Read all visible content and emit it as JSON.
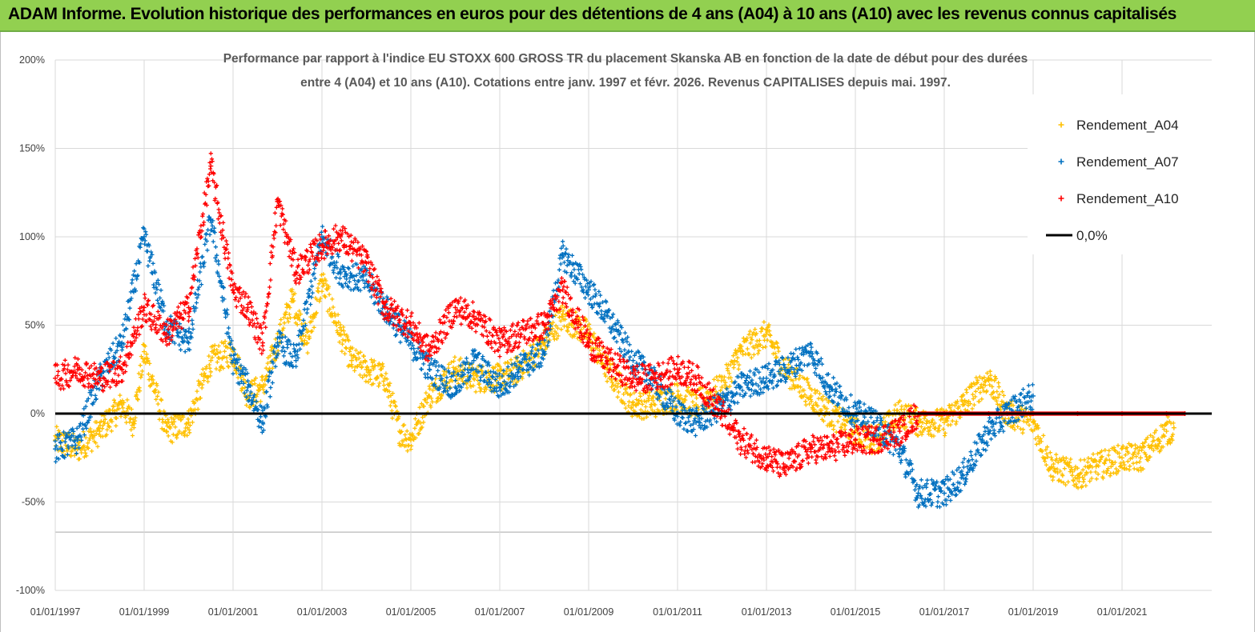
{
  "banner": {
    "title": "ADAM Informe. Evolution historique des performances en euros pour des détentions de 4 ans (A04) à 10 ans (A10) avec les revenus connus capitalisés"
  },
  "colors": {
    "banner_bg": "#92d050",
    "series_A04": "#ffc000",
    "series_A07": "#0070c0",
    "series_A10": "#ff0000",
    "zero_line": "#000000"
  },
  "chart_data": {
    "type": "scatter",
    "title_lines": [
      "Performance par rapport à l'indice EU STOXX 600 GROSS TR  du placement Skanska AB en fonction de la date de début pour des durées",
      "entre 4 (A04) et 10 ans (A10). Cotations entre janv. 1997 et févr. 2026. Revenus CAPITALISES depuis mai. 1997."
    ],
    "xlabel": "",
    "ylabel": "",
    "x_range": [
      "1997-01-01",
      "2022-01-01"
    ],
    "ylim": [
      -100,
      200
    ],
    "y_ticks": [
      "200%",
      "150%",
      "100%",
      "50%",
      "0%",
      "-50%",
      "-100%"
    ],
    "y_tick_values": [
      200,
      150,
      100,
      50,
      0,
      -50,
      -100
    ],
    "x_ticks": [
      "01/01/1997",
      "01/01/1999",
      "01/01/2001",
      "01/01/2003",
      "01/01/2005",
      "01/01/2007",
      "01/01/2009",
      "01/01/2011",
      "01/01/2013",
      "01/01/2015",
      "01/01/2017",
      "01/01/2019",
      "01/01/2021"
    ],
    "x_tick_years": [
      1997,
      1999,
      2001,
      2003,
      2005,
      2007,
      2009,
      2011,
      2013,
      2015,
      2017,
      2019,
      2021
    ],
    "grid": "horizontal and vertical",
    "legend_position": "top-right",
    "series": [
      {
        "name": "Rendement_A04",
        "color": "#ffc000",
        "marker": "+",
        "points": [
          [
            "1997-01",
            -15
          ],
          [
            "1997-07",
            -20
          ],
          [
            "1998-01",
            -10
          ],
          [
            "1998-07",
            5
          ],
          [
            "1998-10",
            -5
          ],
          [
            "1999-01",
            35
          ],
          [
            "1999-07",
            -10
          ],
          [
            "2000-01",
            -5
          ],
          [
            "2000-07",
            30
          ],
          [
            "2001-01",
            35
          ],
          [
            "2001-05",
            10
          ],
          [
            "2001-09",
            15
          ],
          [
            "2002-01",
            40
          ],
          [
            "2002-05",
            65
          ],
          [
            "2002-09",
            40
          ],
          [
            "2003-01",
            75
          ],
          [
            "2003-06",
            45
          ],
          [
            "2003-09",
            30
          ],
          [
            "2004-01",
            25
          ],
          [
            "2004-06",
            20
          ],
          [
            "2004-10",
            -10
          ],
          [
            "2005-01",
            -15
          ],
          [
            "2005-06",
            10
          ],
          [
            "2006-01",
            25
          ],
          [
            "2006-06",
            20
          ],
          [
            "2007-01",
            20
          ],
          [
            "2007-06",
            25
          ],
          [
            "2008-01",
            40
          ],
          [
            "2008-06",
            55
          ],
          [
            "2009-01",
            45
          ],
          [
            "2009-06",
            25
          ],
          [
            "2010-01",
            5
          ],
          [
            "2010-06",
            5
          ],
          [
            "2011-01",
            10
          ],
          [
            "2011-06",
            5
          ],
          [
            "2012-01",
            15
          ],
          [
            "2012-06",
            35
          ],
          [
            "2013-01",
            45
          ],
          [
            "2013-06",
            25
          ],
          [
            "2014-01",
            10
          ],
          [
            "2014-06",
            0
          ],
          [
            "2015-01",
            -10
          ],
          [
            "2015-06",
            -15
          ],
          [
            "2016-01",
            0
          ],
          [
            "2016-06",
            -5
          ],
          [
            "2017-01",
            -5
          ],
          [
            "2017-06",
            5
          ],
          [
            "2018-01",
            20
          ],
          [
            "2018-06",
            0
          ],
          [
            "2019-01",
            -5
          ],
          [
            "2019-06",
            -30
          ],
          [
            "2020-01",
            -35
          ],
          [
            "2020-06",
            -30
          ],
          [
            "2021-01",
            -25
          ],
          [
            "2021-06",
            -25
          ],
          [
            "2022-01",
            -10
          ],
          [
            "2022-03",
            -8
          ]
        ]
      },
      {
        "name": "Rendement_A07",
        "color": "#0070c0",
        "marker": "+",
        "points": [
          [
            "1997-01",
            -20
          ],
          [
            "1997-07",
            -15
          ],
          [
            "1998-01",
            20
          ],
          [
            "1998-07",
            40
          ],
          [
            "1999-01",
            100
          ],
          [
            "1999-07",
            50
          ],
          [
            "2000-01",
            40
          ],
          [
            "2000-07",
            110
          ],
          [
            "2001-01",
            30
          ],
          [
            "2001-05",
            15
          ],
          [
            "2001-09",
            -5
          ],
          [
            "2002-01",
            40
          ],
          [
            "2002-06",
            30
          ],
          [
            "2003-01",
            100
          ],
          [
            "2003-06",
            80
          ],
          [
            "2004-01",
            75
          ],
          [
            "2004-06",
            60
          ],
          [
            "2005-01",
            40
          ],
          [
            "2005-06",
            25
          ],
          [
            "2006-01",
            15
          ],
          [
            "2006-06",
            30
          ],
          [
            "2007-01",
            15
          ],
          [
            "2007-06",
            25
          ],
          [
            "2008-01",
            35
          ],
          [
            "2008-06",
            90
          ],
          [
            "2009-01",
            70
          ],
          [
            "2009-06",
            55
          ],
          [
            "2010-01",
            30
          ],
          [
            "2010-06",
            20
          ],
          [
            "2011-01",
            0
          ],
          [
            "2011-06",
            -5
          ],
          [
            "2012-01",
            5
          ],
          [
            "2012-06",
            15
          ],
          [
            "2013-01",
            20
          ],
          [
            "2013-06",
            25
          ],
          [
            "2014-01",
            35
          ],
          [
            "2014-06",
            15
          ],
          [
            "2015-01",
            0
          ],
          [
            "2015-06",
            -5
          ],
          [
            "2016-01",
            -20
          ],
          [
            "2016-06",
            -45
          ],
          [
            "2017-01",
            -45
          ],
          [
            "2017-06",
            -35
          ],
          [
            "2018-01",
            -10
          ],
          [
            "2018-06",
            0
          ],
          [
            "2019-01",
            10
          ]
        ]
      },
      {
        "name": "Rendement_A10",
        "color": "#ff0000",
        "marker": "+",
        "points": [
          [
            "1997-01",
            20
          ],
          [
            "1997-07",
            25
          ],
          [
            "1998-01",
            20
          ],
          [
            "1998-07",
            25
          ],
          [
            "1999-01",
            60
          ],
          [
            "1999-07",
            45
          ],
          [
            "2000-01",
            60
          ],
          [
            "2000-07",
            140
          ],
          [
            "2001-01",
            70
          ],
          [
            "2001-05",
            60
          ],
          [
            "2001-09",
            40
          ],
          [
            "2002-01",
            120
          ],
          [
            "2002-06",
            80
          ],
          [
            "2003-01",
            95
          ],
          [
            "2003-06",
            100
          ],
          [
            "2004-01",
            85
          ],
          [
            "2004-06",
            60
          ],
          [
            "2005-01",
            50
          ],
          [
            "2005-06",
            35
          ],
          [
            "2006-01",
            60
          ],
          [
            "2006-06",
            55
          ],
          [
            "2007-01",
            40
          ],
          [
            "2007-06",
            45
          ],
          [
            "2008-01",
            50
          ],
          [
            "2008-06",
            70
          ],
          [
            "2009-01",
            40
          ],
          [
            "2009-06",
            30
          ],
          [
            "2010-01",
            20
          ],
          [
            "2010-06",
            20
          ],
          [
            "2011-01",
            25
          ],
          [
            "2011-06",
            20
          ],
          [
            "2012-01",
            0
          ],
          [
            "2012-06",
            -15
          ],
          [
            "2013-01",
            -25
          ],
          [
            "2013-06",
            -30
          ],
          [
            "2014-01",
            -20
          ],
          [
            "2014-06",
            -20
          ],
          [
            "2015-01",
            -15
          ],
          [
            "2015-06",
            -15
          ],
          [
            "2016-01",
            -10
          ],
          [
            "2016-06",
            0
          ],
          [
            "2017-01",
            0
          ],
          [
            "2018-01",
            0
          ],
          [
            "2019-01",
            0
          ],
          [
            "2020-01",
            0
          ],
          [
            "2021-01",
            0
          ],
          [
            "2022-01",
            0
          ],
          [
            "2022-06",
            0
          ]
        ]
      }
    ],
    "reference_line": {
      "name": "0,0%",
      "value": 0
    }
  }
}
